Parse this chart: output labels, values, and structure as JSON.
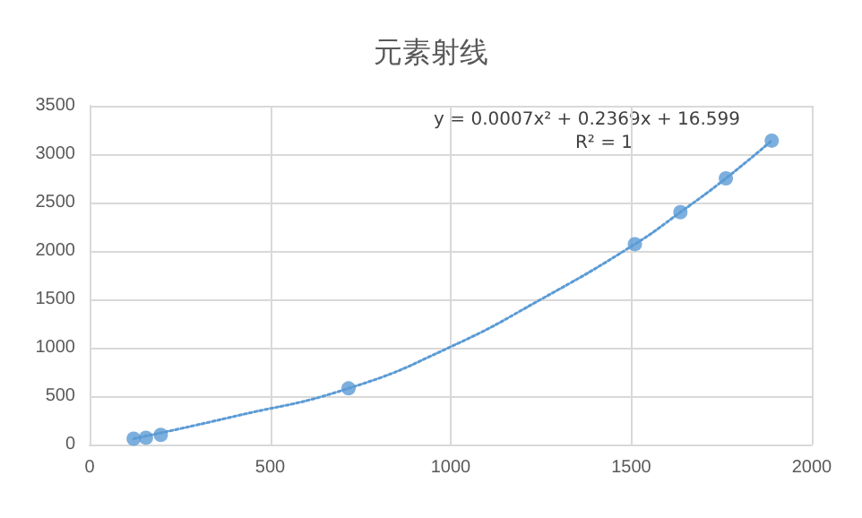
{
  "chart_data": {
    "type": "scatter",
    "title": "元素射线",
    "marker": "circle",
    "grid": true,
    "xlim": [
      0,
      2000
    ],
    "xticks": [
      0,
      500,
      1000,
      1500,
      2000
    ],
    "ylim": [
      0,
      3500
    ],
    "yticks": [
      0,
      500,
      1000,
      1500,
      2000,
      2500,
      3000,
      3500
    ],
    "series": [
      {
        "color": "#5b9bd5",
        "x": [
          122,
          156,
          197,
          717,
          1510,
          1636,
          1762,
          1889
        ],
        "values": [
          60,
          70,
          100,
          580,
          2070,
          2400,
          2750,
          3140
        ]
      },
      {
        "type": "line",
        "color": "#5b9bd5",
        "line_style": "dotted",
        "marker": "none",
        "x": [
          122,
          400,
          717,
          1000,
          1250,
          1510,
          1636,
          1762,
          1889
        ],
        "values": [
          60,
          290,
          580,
          1010,
          1500,
          2070,
          2400,
          2750,
          3140
        ]
      }
    ],
    "annotations": [
      "y = 0.0007x² + 0.2369x + 16.599",
      "R² = 1"
    ]
  }
}
